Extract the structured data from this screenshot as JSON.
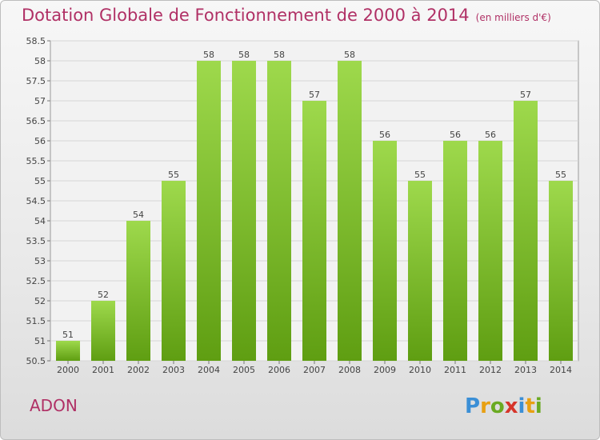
{
  "header": {
    "title": "Dotation Globale de Fonctionnement de 2000 à 2014",
    "subtitle": "(en milliers d'€)"
  },
  "footer": {
    "commune": "ADON",
    "logo_text": "Proxiti"
  },
  "colors": {
    "title": "#b03065",
    "bar_top": "#9ed94c",
    "bar_bottom": "#5f9e12",
    "grid": "#d6d6d6"
  },
  "chart_data": {
    "type": "bar",
    "categories": [
      "2000",
      "2001",
      "2002",
      "2003",
      "2004",
      "2005",
      "2006",
      "2007",
      "2008",
      "2009",
      "2010",
      "2011",
      "2012",
      "2013",
      "2014"
    ],
    "values": [
      51,
      52,
      54,
      55,
      58,
      58,
      58,
      57,
      58,
      56,
      55,
      56,
      56,
      57,
      55
    ],
    "data_labels": [
      "51",
      "52",
      "54",
      "55",
      "58",
      "58",
      "58",
      "57",
      "58",
      "56",
      "55",
      "56",
      "56",
      "57",
      "55"
    ],
    "ylim": [
      50.5,
      58.5
    ],
    "yticks": [
      "50.5",
      "51",
      "51.5",
      "52",
      "52.5",
      "53",
      "53.5",
      "54",
      "54.5",
      "55",
      "55.5",
      "56",
      "56.5",
      "57",
      "57.5",
      "58",
      "58.5"
    ],
    "grid": true,
    "legend": "none"
  }
}
